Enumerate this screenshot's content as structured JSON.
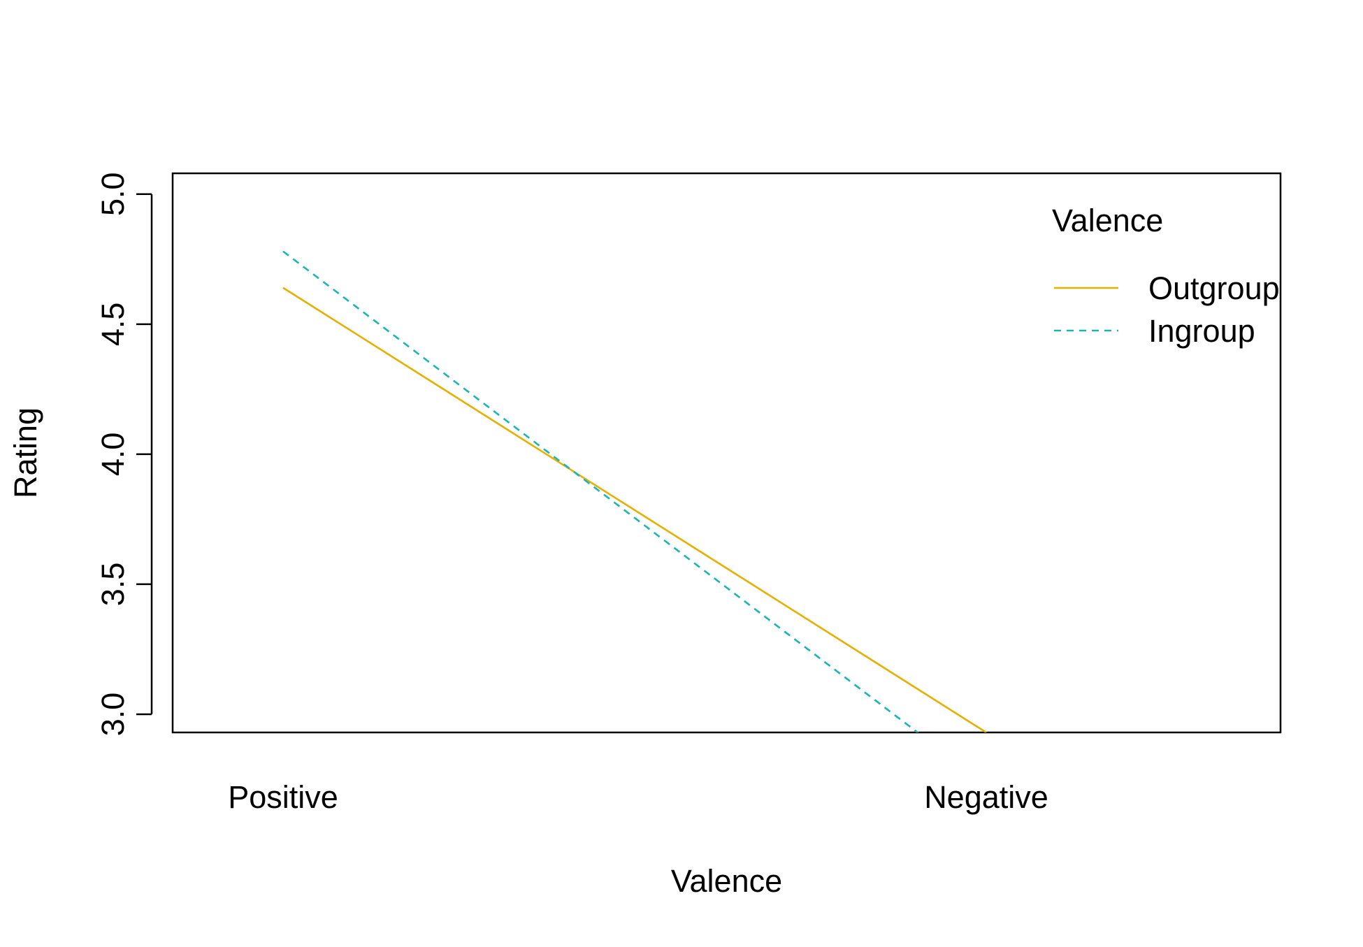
{
  "chart_data": {
    "type": "line",
    "title": "",
    "xlabel": "Valence",
    "ylabel": "Rating",
    "categories": [
      "Positive",
      "Negative"
    ],
    "yticks": [
      3.0,
      3.5,
      4.0,
      4.5,
      5.0
    ],
    "ytick_labels": [
      "3.0",
      "3.5",
      "4.0",
      "4.5",
      "5.0"
    ],
    "ylim": [
      2.93,
      5.08
    ],
    "grid": false,
    "legend": {
      "title": "Valence",
      "position": "top-right",
      "entries": [
        "Outgroup",
        "Ingroup"
      ]
    },
    "series": [
      {
        "name": "Outgroup",
        "values": [
          4.64,
          2.93
        ],
        "color": "#E6B000",
        "dash": "solid"
      },
      {
        "name": "Ingroup",
        "values": [
          4.78,
          2.73
        ],
        "color": "#1BB5B5",
        "dash": "dashed"
      }
    ]
  }
}
